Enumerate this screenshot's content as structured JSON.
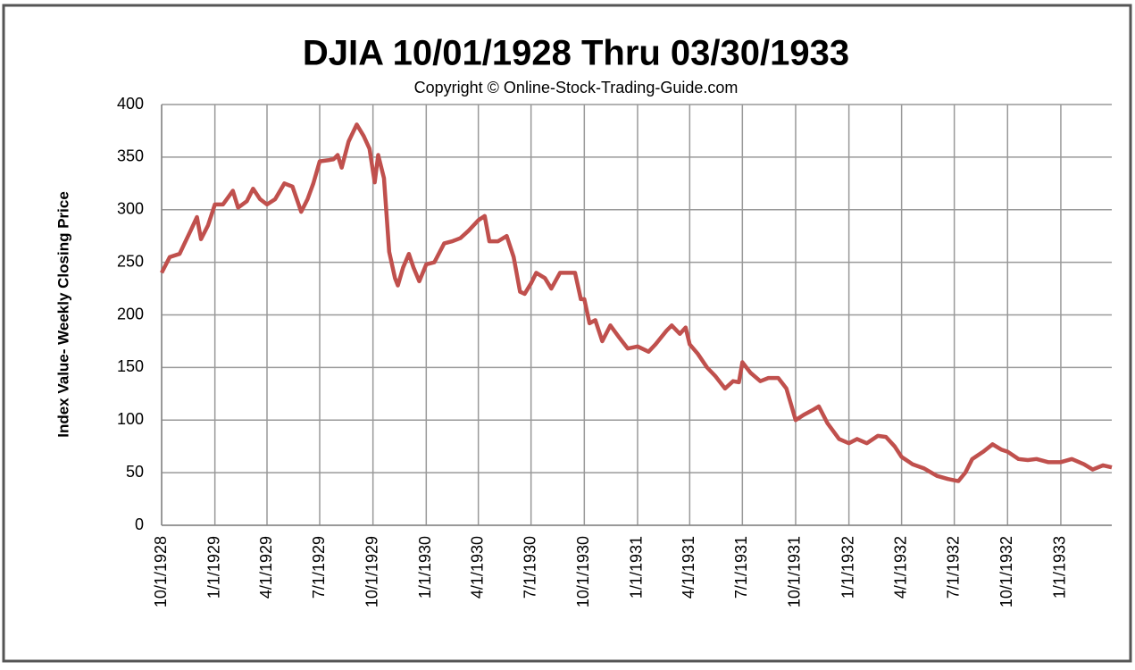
{
  "chart_data": {
    "type": "line",
    "title": "DJIA 10/01/1928  Thru 03/30/1933",
    "subtitle": "Copyright © Online-Stock-Trading-Guide.com",
    "y_label": "Index Value- Weekly Closing Price",
    "grid": true,
    "xlim": [
      "10/1/1928",
      "3/30/1933"
    ],
    "xticks": [
      "10/1/1928",
      "1/1/1929",
      "4/1/1929",
      "7/1/1929",
      "10/1/1929",
      "1/1/1930",
      "4/1/1930",
      "7/1/1930",
      "10/1/1930",
      "1/1/1931",
      "4/1/1931",
      "7/1/1931",
      "10/1/1931",
      "1/1/1932",
      "4/1/1932",
      "7/1/1932",
      "10/1/1932",
      "1/1/1933"
    ],
    "ylim": [
      0,
      400
    ],
    "yticks": [
      0,
      50,
      100,
      150,
      200,
      250,
      300,
      350,
      400
    ],
    "x": [
      "10/1/1928",
      "10/15/1928",
      "11/1/1928",
      "11/20/1928",
      "12/1/1928",
      "12/8/1928",
      "12/20/1928",
      "1/1/1929",
      "1/15/1929",
      "2/1/1929",
      "2/10/1929",
      "2/25/1929",
      "3/8/1929",
      "3/20/1929",
      "4/1/1929",
      "4/15/1929",
      "5/1/1929",
      "5/15/1929",
      "5/30/1929",
      "6/10/1929",
      "6/20/1929",
      "7/1/1929",
      "7/15/1929",
      "7/25/1929",
      "8/1/1929",
      "8/8/1929",
      "8/20/1929",
      "9/3/1929",
      "9/15/1929",
      "9/25/1929",
      "10/4/1929",
      "10/10/1929",
      "10/20/1929",
      "10/29/1929",
      "11/8/1929",
      "11/13/1929",
      "11/22/1929",
      "12/2/1929",
      "12/10/1929",
      "12/20/1929",
      "1/1/1930",
      "1/15/1930",
      "2/1/1930",
      "2/15/1930",
      "3/1/1930",
      "3/15/1930",
      "4/1/1930",
      "4/12/1930",
      "4/20/1930",
      "5/5/1930",
      "5/20/1930",
      "6/1/1930",
      "6/12/1930",
      "6/20/1930",
      "7/1/1930",
      "7/10/1930",
      "7/25/1930",
      "8/5/1930",
      "8/20/1930",
      "9/5/1930",
      "9/15/1930",
      "9/25/1930",
      "10/1/1930",
      "10/10/1930",
      "10/20/1930",
      "11/1/1930",
      "11/15/1930",
      "12/1/1930",
      "12/15/1930",
      "1/1/1931",
      "1/20/1931",
      "2/1/1931",
      "2/20/1931",
      "3/1/1931",
      "3/15/1931",
      "3/25/1931",
      "4/1/1931",
      "4/15/1931",
      "5/1/1931",
      "5/15/1931",
      "6/1/1931",
      "6/15/1931",
      "6/25/1931",
      "7/1/1931",
      "7/15/1931",
      "8/1/1931",
      "8/15/1931",
      "9/1/1931",
      "9/15/1931",
      "10/1/1931",
      "10/15/1931",
      "11/1/1931",
      "11/10/1931",
      "11/25/1931",
      "12/15/1931",
      "1/1/1932",
      "1/15/1932",
      "2/1/1932",
      "2/20/1932",
      "3/5/1932",
      "3/20/1932",
      "4/1/1932",
      "4/20/1932",
      "5/10/1932",
      "6/1/1932",
      "6/20/1932",
      "7/8/1932",
      "7/20/1932",
      "8/1/1932",
      "8/20/1932",
      "9/5/1932",
      "9/20/1932",
      "10/1/1932",
      "10/20/1932",
      "11/5/1932",
      "11/20/1932",
      "12/10/1932",
      "1/1/1933",
      "1/20/1933",
      "2/10/1933",
      "2/25/1933",
      "3/15/1933",
      "3/30/1933"
    ],
    "series": [
      {
        "color": "#c0504d",
        "values": [
          240,
          255,
          258,
          280,
          293,
          272,
          285,
          305,
          305,
          318,
          302,
          308,
          320,
          310,
          305,
          310,
          325,
          322,
          298,
          310,
          325,
          346,
          347,
          348,
          352,
          340,
          365,
          381,
          370,
          358,
          326,
          352,
          330,
          260,
          235,
          228,
          245,
          258,
          245,
          232,
          248,
          250,
          268,
          270,
          273,
          280,
          290,
          294,
          270,
          270,
          275,
          255,
          222,
          220,
          230,
          240,
          235,
          225,
          240,
          240,
          240,
          215,
          215,
          192,
          195,
          175,
          190,
          178,
          168,
          170,
          165,
          172,
          185,
          190,
          182,
          188,
          172,
          163,
          150,
          142,
          130,
          137,
          136,
          155,
          145,
          137,
          140,
          140,
          130,
          100,
          105,
          110,
          113,
          97,
          82,
          78,
          82,
          78,
          85,
          84,
          75,
          65,
          58,
          54,
          47,
          44,
          42,
          50,
          63,
          70,
          77,
          72,
          70,
          63,
          62,
          63,
          60,
          60,
          63,
          58,
          53,
          57,
          55
        ]
      }
    ]
  }
}
